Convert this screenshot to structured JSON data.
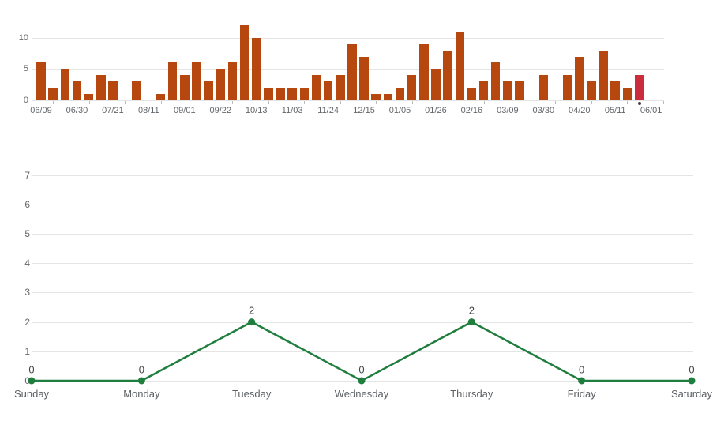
{
  "colors": {
    "bar": "#b5470f",
    "bar_highlight": "#cb2d3e",
    "line": "#1f7e3e",
    "gridline": "#e5e5e5",
    "axis_text": "#63676b",
    "marker_dot": "#404040"
  },
  "chart_data": [
    {
      "type": "bar",
      "title": "",
      "xlabel": "",
      "ylabel": "",
      "description": "weekly activity bars, one bar per week, x tick label every 3 bars",
      "x_tick_labels": [
        "06/09",
        "06/30",
        "07/21",
        "08/11",
        "09/01",
        "09/22",
        "10/13",
        "11/03",
        "11/24",
        "12/15",
        "01/05",
        "01/26",
        "02/16",
        "03/09",
        "03/30",
        "04/20",
        "05/11",
        "06/01"
      ],
      "bars_per_label": 3,
      "values": [
        6,
        2,
        5,
        3,
        1,
        4,
        3,
        0,
        3,
        0,
        1,
        6,
        4,
        6,
        3,
        5,
        6,
        12,
        10,
        2,
        2,
        2,
        2,
        4,
        3,
        4,
        9,
        7,
        1,
        1,
        2,
        4,
        9,
        5,
        8,
        11,
        2,
        3,
        6,
        3,
        3,
        0,
        4,
        0,
        4,
        7,
        3,
        8,
        3,
        2,
        4,
        0
      ],
      "yticks": [
        0,
        5,
        10
      ],
      "ylim": [
        0,
        12
      ],
      "grid": true,
      "bar_color": "#b5470f",
      "highlight_index": 50,
      "highlight_color": "#cb2d3e",
      "marker_dot_below_index": 50
    },
    {
      "type": "line",
      "title": "",
      "xlabel": "",
      "ylabel": "",
      "categories": [
        "Sunday",
        "Monday",
        "Tuesday",
        "Wednesday",
        "Thursday",
        "Friday",
        "Saturday"
      ],
      "values": [
        0,
        0,
        2,
        0,
        2,
        0,
        0
      ],
      "point_labels": [
        "0",
        "0",
        "2",
        "0",
        "2",
        "0",
        "0"
      ],
      "yticks": [
        0,
        1,
        2,
        3,
        4,
        5,
        6,
        7
      ],
      "ylim": [
        0,
        7
      ],
      "grid": true,
      "legend": "none",
      "line_color": "#1f7e3e",
      "point_color": "#1f7e3e"
    }
  ]
}
